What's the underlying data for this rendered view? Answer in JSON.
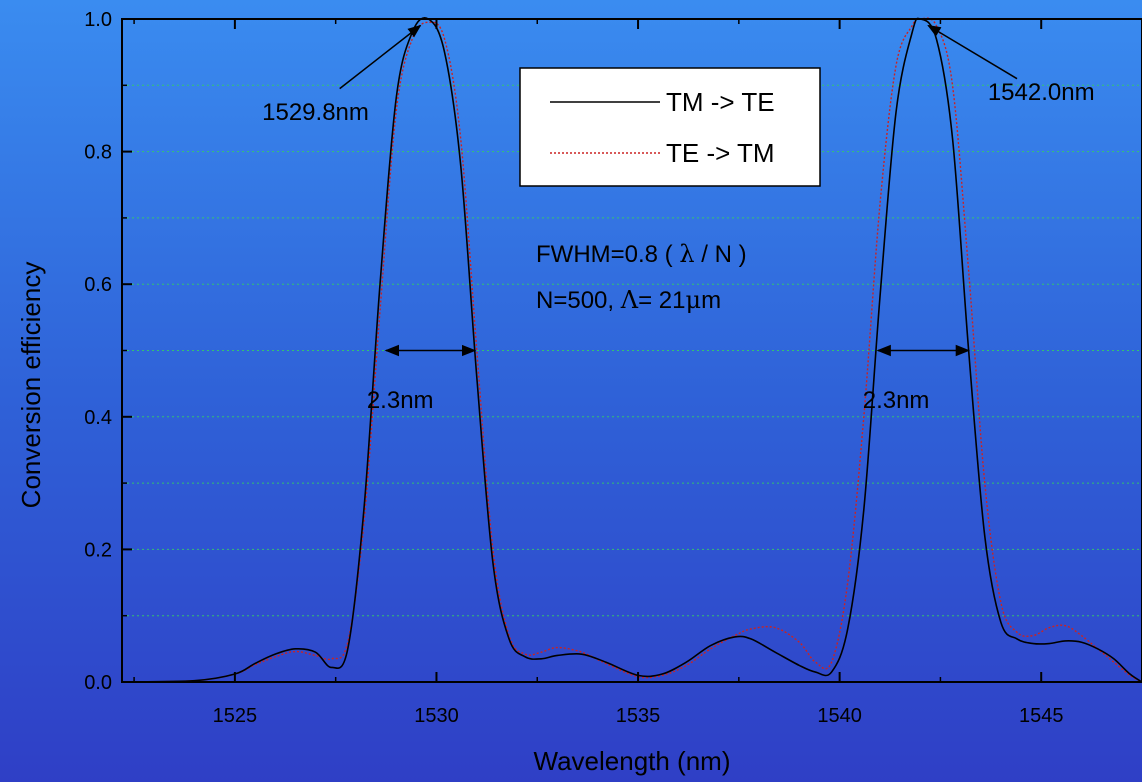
{
  "chart_data": {
    "type": "line",
    "title": "",
    "xlabel": "Wavelength (nm)",
    "ylabel": "Conversion efficiency",
    "xlim": [
      1522.2,
      1547.5
    ],
    "ylim": [
      0,
      1.0
    ],
    "xticks": [
      1525,
      1530,
      1535,
      1540,
      1545
    ],
    "yticks": [
      0.0,
      0.2,
      0.4,
      0.6,
      0.8,
      1.0
    ],
    "xtick_labels": [
      "1525",
      "1530",
      "1535",
      "1540",
      "1545"
    ],
    "ytick_labels": [
      "0.0",
      "0.2",
      "0.4",
      "0.6",
      "0.8",
      "1.0"
    ],
    "grid": "horizontal dotted",
    "legend_position": "top-center",
    "series": [
      {
        "name": "TM -> TE",
        "color": "#000000",
        "style": "solid",
        "x": [
          1522.2,
          1524.0,
          1525.0,
          1525.5,
          1526.0,
          1526.5,
          1527.0,
          1527.4,
          1527.8,
          1528.2,
          1528.6,
          1529.0,
          1529.4,
          1529.8,
          1530.2,
          1530.6,
          1531.0,
          1531.4,
          1531.8,
          1532.2,
          1532.6,
          1533.0,
          1533.6,
          1534.2,
          1535.0,
          1535.6,
          1536.2,
          1536.8,
          1537.4,
          1537.8,
          1538.4,
          1539.0,
          1539.4,
          1539.8,
          1540.2,
          1540.6,
          1541.0,
          1541.4,
          1541.8,
          1542.0,
          1542.4,
          1542.8,
          1543.2,
          1543.6,
          1544.0,
          1544.4,
          1544.8,
          1545.2,
          1545.6,
          1546.0,
          1546.4,
          1546.8,
          1547.2,
          1547.5
        ],
        "y": [
          0,
          0.002,
          0.012,
          0.028,
          0.042,
          0.05,
          0.045,
          0.022,
          0.05,
          0.26,
          0.6,
          0.88,
          0.98,
          1.0,
          0.95,
          0.78,
          0.46,
          0.18,
          0.065,
          0.038,
          0.035,
          0.04,
          0.042,
          0.03,
          0.01,
          0.012,
          0.03,
          0.055,
          0.068,
          0.065,
          0.045,
          0.025,
          0.015,
          0.015,
          0.08,
          0.26,
          0.58,
          0.86,
          0.98,
          1.0,
          0.97,
          0.82,
          0.5,
          0.22,
          0.09,
          0.065,
          0.058,
          0.058,
          0.062,
          0.06,
          0.05,
          0.035,
          0.012,
          0.0
        ]
      },
      {
        "name": "TE -> TM",
        "color": "#cc2222",
        "style": "dotted",
        "x": [
          1522.2,
          1524.0,
          1525.0,
          1525.5,
          1526.0,
          1526.5,
          1527.0,
          1527.4,
          1527.8,
          1528.2,
          1528.6,
          1529.0,
          1529.4,
          1529.8,
          1530.2,
          1530.6,
          1531.0,
          1531.4,
          1531.8,
          1532.2,
          1532.6,
          1533.0,
          1533.6,
          1534.2,
          1535.0,
          1535.6,
          1536.2,
          1536.8,
          1537.4,
          1537.8,
          1538.4,
          1539.0,
          1539.4,
          1539.8,
          1540.2,
          1540.6,
          1541.0,
          1541.4,
          1541.8,
          1542.0,
          1542.4,
          1542.8,
          1543.2,
          1543.6,
          1544.0,
          1544.4,
          1544.8,
          1545.2,
          1545.6,
          1546.0,
          1546.4,
          1546.8,
          1547.2,
          1547.5
        ],
        "y": [
          0,
          0.002,
          0.012,
          0.026,
          0.038,
          0.046,
          0.04,
          0.035,
          0.06,
          0.24,
          0.56,
          0.86,
          0.97,
          0.995,
          0.97,
          0.82,
          0.5,
          0.2,
          0.07,
          0.042,
          0.045,
          0.052,
          0.045,
          0.028,
          0.008,
          0.01,
          0.025,
          0.05,
          0.07,
          0.08,
          0.082,
          0.06,
          0.03,
          0.03,
          0.15,
          0.4,
          0.72,
          0.93,
          0.99,
          1.0,
          0.99,
          0.9,
          0.62,
          0.3,
          0.12,
          0.075,
          0.07,
          0.082,
          0.085,
          0.07,
          0.05,
          0.03,
          0.01,
          0.0
        ]
      }
    ],
    "annotations": [
      {
        "text": "1529.8nm",
        "x": 1527.0,
        "y": 0.86
      },
      {
        "text": "1542.0nm",
        "x": 1545.0,
        "y": 0.89
      },
      {
        "text": "2.3nm",
        "x": 1529.1,
        "y": 0.425
      },
      {
        "text": "2.3nm",
        "x": 1541.4,
        "y": 0.425
      }
    ],
    "formula_lines": {
      "fwhm_prefix": "FWHM=0.8 ( ",
      "lambda": "λ",
      "fwhm_mid": " / N )",
      "n_text": "N=500,  ",
      "Lambda": "Λ",
      "eq_pre": "= 21",
      "mu": "μ",
      "eq_post": "m"
    }
  }
}
